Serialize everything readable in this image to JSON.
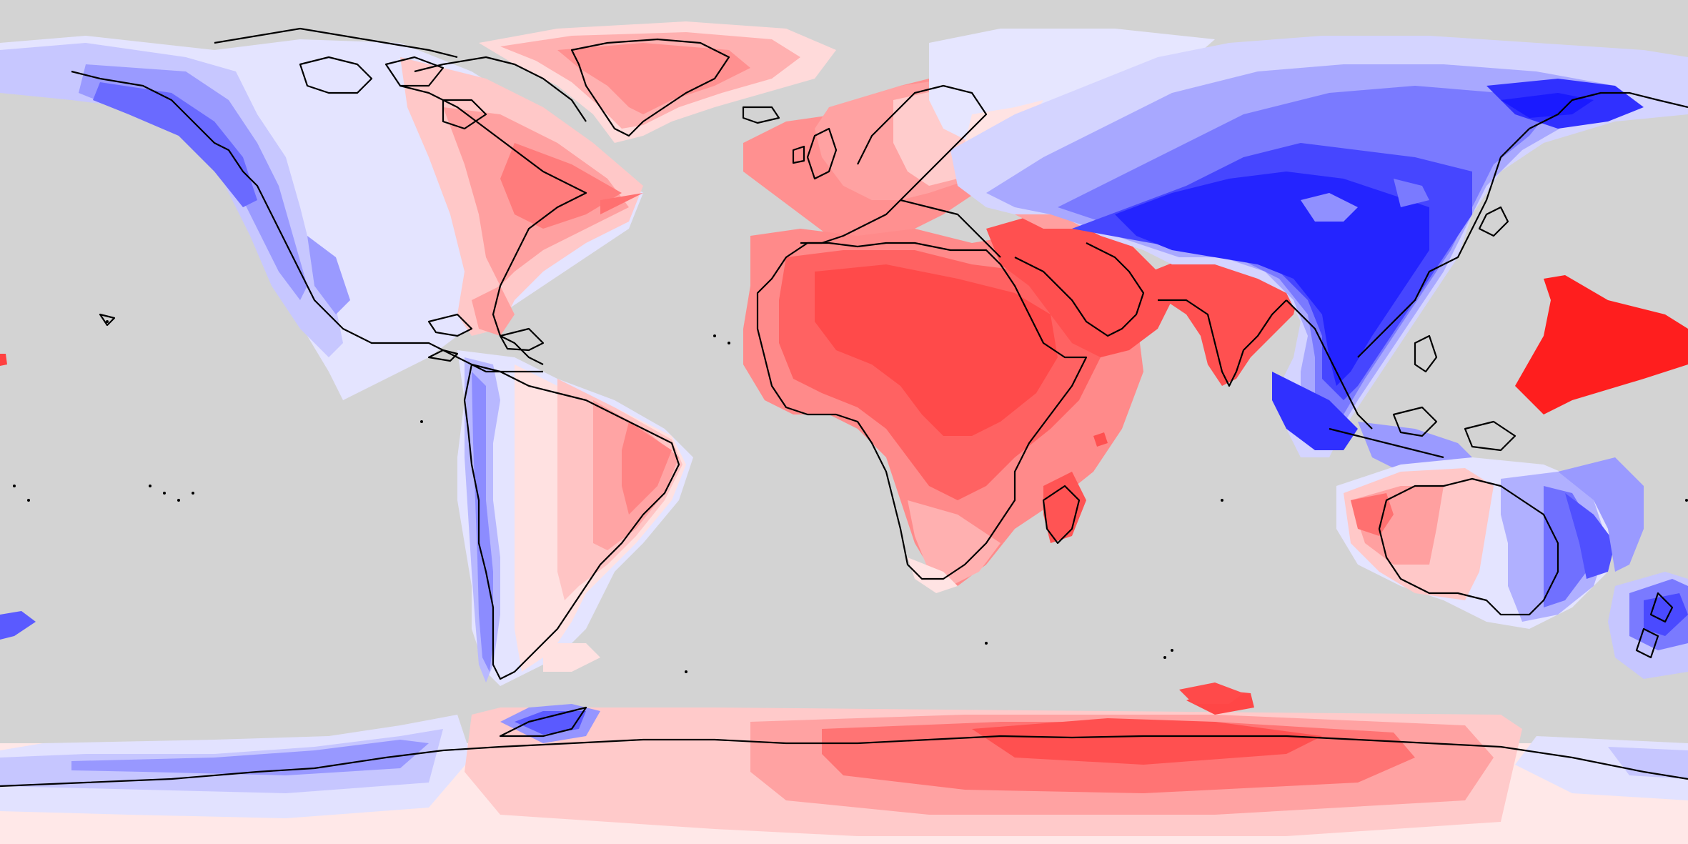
{
  "map": {
    "projection": "equirectangular",
    "title": "",
    "background_color": "#d3d3d3",
    "coastline_color": "#000000",
    "diverging_palette": {
      "strong_positive": "#ff1e1e",
      "positive": "#ff4a4a",
      "mid_positive": "#ff7070",
      "weak_positive": "#ffa7a7",
      "very_weak_positive": "#ffe1e1",
      "neutral": "#f3f3ff",
      "very_weak_negative": "#e3e3ff",
      "weak_negative": "#c5c5ff",
      "mid_negative": "#9090ff",
      "negative": "#5a5aff",
      "strong_negative": "#1e1eff"
    },
    "regions": [
      {
        "name": "north-america-west",
        "sign": "negative"
      },
      {
        "name": "north-america-east",
        "sign": "positive"
      },
      {
        "name": "greenland",
        "sign": "positive"
      },
      {
        "name": "south-america-west",
        "sign": "negative"
      },
      {
        "name": "south-america-east",
        "sign": "positive"
      },
      {
        "name": "europe-west",
        "sign": "positive"
      },
      {
        "name": "africa",
        "sign": "positive"
      },
      {
        "name": "arabian-peninsula",
        "sign": "positive"
      },
      {
        "name": "india",
        "sign": "positive"
      },
      {
        "name": "central-asia",
        "sign": "negative"
      },
      {
        "name": "east-asia",
        "sign": "negative"
      },
      {
        "name": "southeast-asia",
        "sign": "negative"
      },
      {
        "name": "australia-west",
        "sign": "positive"
      },
      {
        "name": "australia-east",
        "sign": "negative"
      },
      {
        "name": "new-zealand",
        "sign": "negative"
      },
      {
        "name": "western-pacific-patch",
        "sign": "positive"
      },
      {
        "name": "antarctica-east",
        "sign": "positive"
      },
      {
        "name": "antarctica-west",
        "sign": "negative"
      }
    ]
  }
}
